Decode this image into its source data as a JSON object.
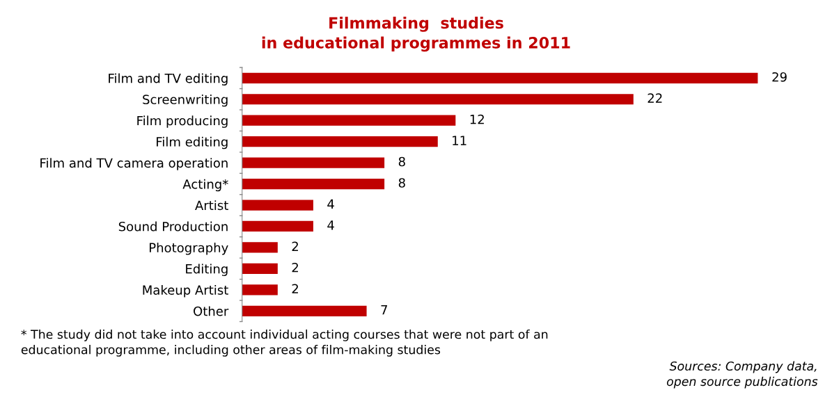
{
  "chart_data": {
    "type": "bar",
    "orientation": "horizontal",
    "title": "Filmmaking  studies\nin educational programmes in 2011",
    "categories": [
      "Film and TV editing",
      "Screenwriting",
      "Film producing",
      "Film editing",
      "Film and TV camera operation",
      "Acting*",
      "Artist",
      "Sound Production",
      "Photography",
      "Editing",
      "Makeup Artist",
      "Other"
    ],
    "values": [
      29,
      22,
      12,
      11,
      8,
      8,
      4,
      4,
      2,
      2,
      2,
      7
    ],
    "color": "#c00000",
    "data_labels": true,
    "grid": false,
    "legend": false,
    "tick_labels": "y",
    "annotations": [
      "* The study did not take into account individual acting courses that were not part of an\neducational programme, including other areas of film-making studies",
      "Sources: Company data,\nopen source publications"
    ]
  }
}
